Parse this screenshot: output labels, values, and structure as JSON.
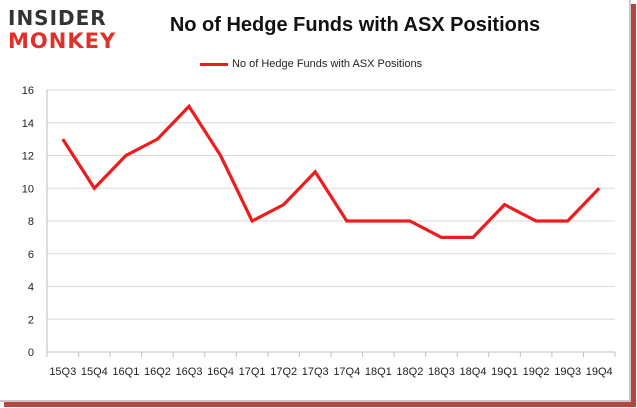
{
  "logo": {
    "line1": "INSIDER",
    "line2": "MONKEY"
  },
  "colors": {
    "series": "#ee1c1c",
    "grid": "#d9d9d9",
    "axis": "#bfbfbf",
    "shadow": "#b8463f"
  },
  "chart_data": {
    "type": "line",
    "title": "No of Hedge Funds with ASX Positions",
    "xlabel": "",
    "ylabel": "",
    "ylim": [
      0,
      16
    ],
    "yticks": [
      0,
      2,
      4,
      6,
      8,
      10,
      12,
      14,
      16
    ],
    "grid": true,
    "legend_position": "top-center",
    "categories": [
      "15Q3",
      "15Q4",
      "16Q1",
      "16Q2",
      "16Q3",
      "16Q4",
      "17Q1",
      "17Q2",
      "17Q3",
      "17Q4",
      "18Q1",
      "18Q2",
      "18Q3",
      "18Q4",
      "19Q1",
      "19Q2",
      "19Q3",
      "19Q4"
    ],
    "series": [
      {
        "name": "No of Hedge Funds with ASX Positions",
        "values": [
          13,
          10,
          12,
          13,
          15,
          12,
          8,
          9,
          11,
          8,
          8,
          8,
          7,
          7,
          9,
          8,
          8,
          10
        ]
      }
    ]
  }
}
